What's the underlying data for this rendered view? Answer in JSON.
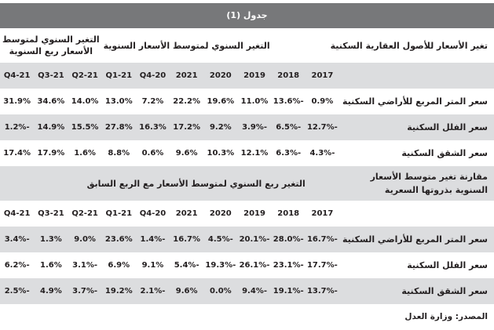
{
  "title": "جدول (1)",
  "columns": [
    "2017",
    "2018",
    "2019",
    "2020",
    "2021",
    "20-Q4",
    "21-Q1",
    "21-Q2",
    "21-Q3",
    "21-Q4"
  ],
  "section1": {
    "label": "تغير الأسعار للأصول العقارية السكنية",
    "group_annual": "التغير السنوي لمتوسط الأسعار السنوية",
    "group_quarterly": "التغير السنوي لمتوسط الأسعار ربع السنوية",
    "rows": [
      {
        "label": "سعر المتر المربع للأراضي السكنية",
        "values": [
          "0.9%",
          "-13.6%",
          "11.0%",
          "19.6%",
          "22.2%",
          "7.2%",
          "13.0%",
          "14.0%",
          "34.6%",
          "31.9%"
        ]
      },
      {
        "label": "سعر الفلل السكنية",
        "values": [
          "-12.7%",
          "-6.5%",
          "-3.9%",
          "9.2%",
          "17.2%",
          "16.3%",
          "27.8%",
          "15.5%",
          "14.9%",
          "-1.2%"
        ]
      },
      {
        "label": "سعر الشقق السكنية",
        "values": [
          "-4.3%",
          "-6.3%",
          "12.1%",
          "10.3%",
          "9.6%",
          "0.6%",
          "8.8%",
          "1.6%",
          "17.9%",
          "17.4%"
        ]
      }
    ]
  },
  "section2": {
    "label": "مقارنة تغير متوسط الأسعار السنوية بذروتها السعرية",
    "group": "التغير ربع السنوي لمتوسط الأسعار مع الربع السابق",
    "rows": [
      {
        "label": "سعر المتر المربع للأراضي السكنية",
        "values": [
          "-16.7%",
          "-28.0%",
          "-20.1%",
          "-4.5%",
          "16.7%",
          "-1.4%",
          "23.6%",
          "9.0%",
          "1.3%",
          "-3.4%"
        ]
      },
      {
        "label": "سعر الفلل السكنية",
        "values": [
          "-17.7%",
          "-23.1%",
          "-26.1%",
          "-19.3%",
          "-5.4%",
          "9.1%",
          "6.9%",
          "-3.1%",
          "1.6%",
          "-6.2%"
        ]
      },
      {
        "label": "سعر الشقق السكنية",
        "values": [
          "-13.7%",
          "-19.1%",
          "-9.4%",
          "0.0%",
          "9.6%",
          "-2.1%",
          "19.2%",
          "-3.7%",
          "4.9%",
          "-2.5%"
        ]
      }
    ]
  },
  "source": "المصدر: وزارة العدل"
}
